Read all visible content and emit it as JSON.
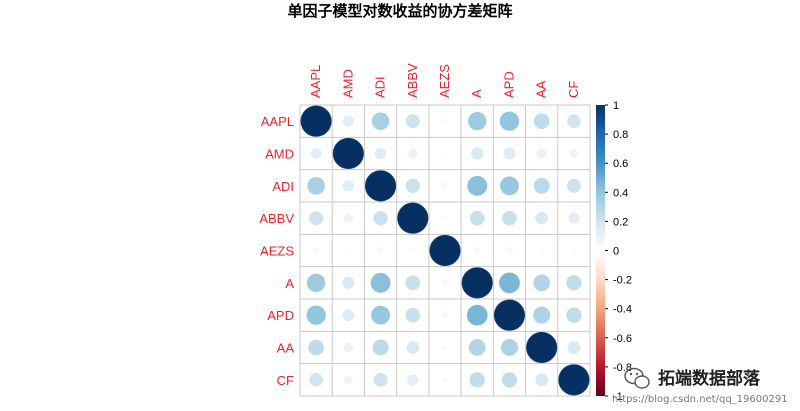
{
  "chart_data": {
    "type": "heatmap",
    "title": "单因子模型对数收益的协方差矩阵",
    "labels": [
      "AAPL",
      "AMD",
      "ADI",
      "ABBV",
      "AEZS",
      "A",
      "APD",
      "AA",
      "CF"
    ],
    "matrix": [
      [
        1.0,
        0.13,
        0.33,
        0.21,
        0.04,
        0.36,
        0.4,
        0.26,
        0.2
      ],
      [
        0.13,
        1.0,
        0.14,
        0.09,
        0.02,
        0.16,
        0.15,
        0.1,
        0.08
      ],
      [
        0.33,
        0.14,
        1.0,
        0.22,
        0.05,
        0.42,
        0.38,
        0.27,
        0.21
      ],
      [
        0.21,
        0.09,
        0.22,
        1.0,
        0.03,
        0.23,
        0.23,
        0.17,
        0.13
      ],
      [
        0.04,
        0.02,
        0.05,
        0.03,
        1.0,
        0.05,
        0.05,
        0.03,
        0.03
      ],
      [
        0.36,
        0.16,
        0.42,
        0.23,
        0.05,
        1.0,
        0.46,
        0.3,
        0.25
      ],
      [
        0.4,
        0.15,
        0.38,
        0.23,
        0.05,
        0.46,
        1.0,
        0.31,
        0.25
      ],
      [
        0.26,
        0.1,
        0.27,
        0.17,
        0.03,
        0.3,
        0.31,
        1.0,
        0.17
      ],
      [
        0.2,
        0.08,
        0.21,
        0.13,
        0.03,
        0.25,
        0.25,
        0.17,
        1.0
      ]
    ],
    "colorbar": {
      "ticks": [
        "1",
        "0.8",
        "0.6",
        "0.4",
        "0.2",
        "0",
        "-0.2",
        "-0.4",
        "-0.6",
        "-0.8",
        "-1"
      ],
      "range": [
        -1,
        1
      ]
    },
    "colors": {
      "strong_negative": "#67001f",
      "negative": "#d6604d",
      "light_negative": "#fddbc7",
      "zero": "#ffffff",
      "light_positive": "#d1e5f0",
      "positive": "#4393c3",
      "strong_positive": "#053061",
      "label": "#e8232b"
    }
  },
  "watermark": {
    "text": "拓端数据部落",
    "url": "https://blog.csdn.net/qq_19600291",
    "icon": "wechat-icon"
  }
}
